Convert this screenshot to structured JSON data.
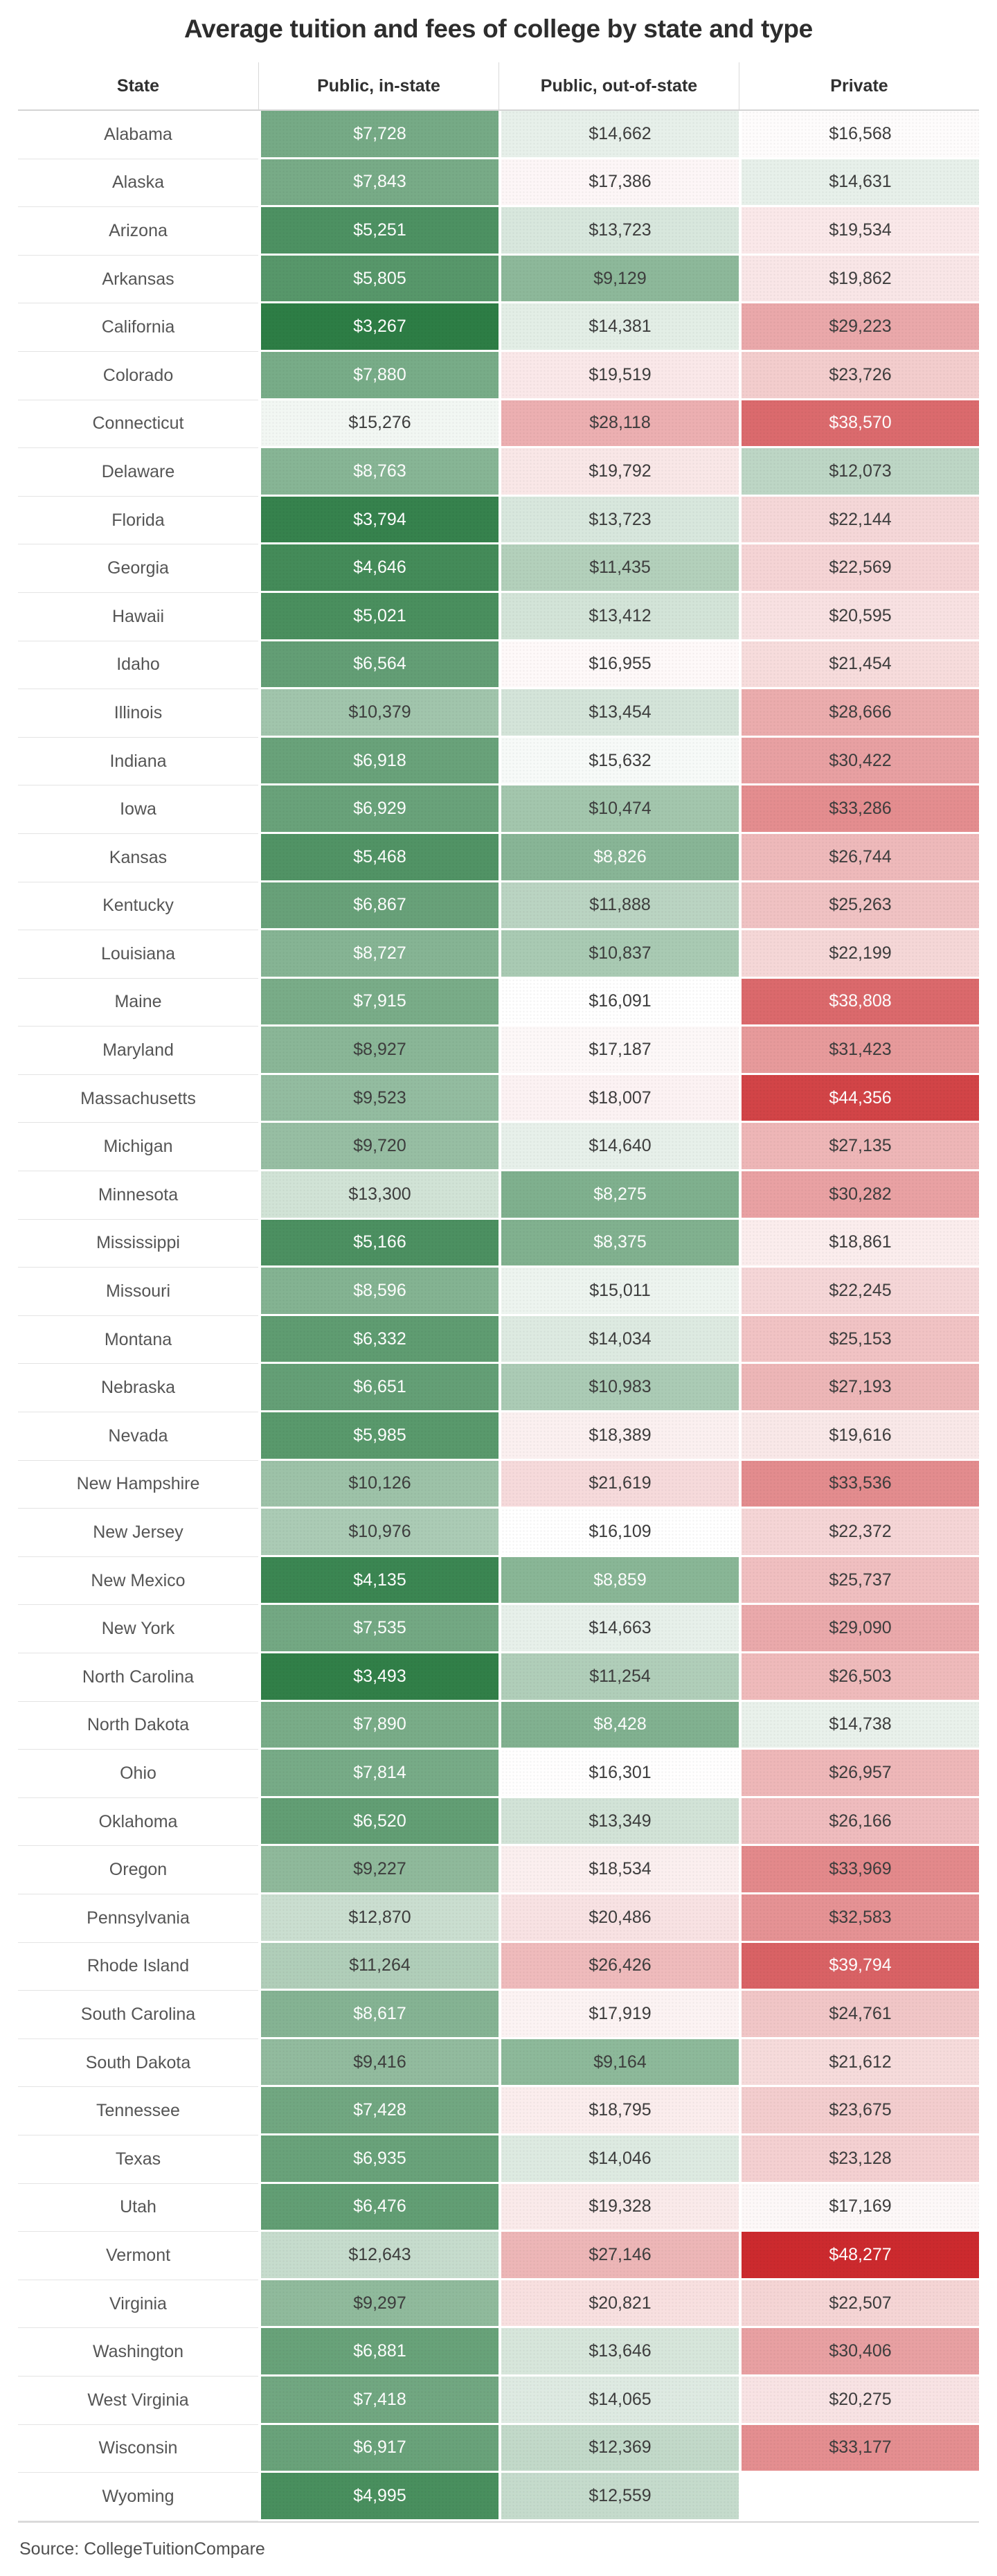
{
  "page": {
    "title": "Average tuition and fees of college by state and type",
    "source": "Source: CollegeTuitionCompare"
  },
  "chart_data": {
    "type": "heatmap",
    "title": "Average tuition and fees of college by state and type",
    "columns": [
      "State",
      "Public, in-state",
      "Public, out-of-state",
      "Private"
    ],
    "value_format": "$#,###",
    "color_scale": {
      "description": "diverging green-white-red; green = low tuition, red = high tuition",
      "min_value": 3267,
      "mid_value": 16100,
      "max_value": 48277,
      "low_color": "#2d7d45",
      "mid_color": "#ffffff",
      "high_color": "#cc2a2e",
      "white_text_green_t_below": 0.44,
      "white_text_red_t_above": 0.63,
      "dark_text_color": "#3d3d3d"
    },
    "rows": [
      {
        "state": "Alabama",
        "public_in_state": 7728,
        "public_out_of_state": 14662,
        "private": 16568
      },
      {
        "state": "Alaska",
        "public_in_state": 7843,
        "public_out_of_state": 17386,
        "private": 14631
      },
      {
        "state": "Arizona",
        "public_in_state": 5251,
        "public_out_of_state": 13723,
        "private": 19534
      },
      {
        "state": "Arkansas",
        "public_in_state": 5805,
        "public_out_of_state": 9129,
        "private": 19862
      },
      {
        "state": "California",
        "public_in_state": 3267,
        "public_out_of_state": 14381,
        "private": 29223
      },
      {
        "state": "Colorado",
        "public_in_state": 7880,
        "public_out_of_state": 19519,
        "private": 23726
      },
      {
        "state": "Connecticut",
        "public_in_state": 15276,
        "public_out_of_state": 28118,
        "private": 38570
      },
      {
        "state": "Delaware",
        "public_in_state": 8763,
        "public_out_of_state": 19792,
        "private": 12073
      },
      {
        "state": "Florida",
        "public_in_state": 3794,
        "public_out_of_state": 13723,
        "private": 22144
      },
      {
        "state": "Georgia",
        "public_in_state": 4646,
        "public_out_of_state": 11435,
        "private": 22569
      },
      {
        "state": "Hawaii",
        "public_in_state": 5021,
        "public_out_of_state": 13412,
        "private": 20595
      },
      {
        "state": "Idaho",
        "public_in_state": 6564,
        "public_out_of_state": 16955,
        "private": 21454
      },
      {
        "state": "Illinois",
        "public_in_state": 10379,
        "public_out_of_state": 13454,
        "private": 28666
      },
      {
        "state": "Indiana",
        "public_in_state": 6918,
        "public_out_of_state": 15632,
        "private": 30422
      },
      {
        "state": "Iowa",
        "public_in_state": 6929,
        "public_out_of_state": 10474,
        "private": 33286
      },
      {
        "state": "Kansas",
        "public_in_state": 5468,
        "public_out_of_state": 8826,
        "private": 26744
      },
      {
        "state": "Kentucky",
        "public_in_state": 6867,
        "public_out_of_state": 11888,
        "private": 25263
      },
      {
        "state": "Louisiana",
        "public_in_state": 8727,
        "public_out_of_state": 10837,
        "private": 22199
      },
      {
        "state": "Maine",
        "public_in_state": 7915,
        "public_out_of_state": 16091,
        "private": 38808
      },
      {
        "state": "Maryland",
        "public_in_state": 8927,
        "public_out_of_state": 17187,
        "private": 31423
      },
      {
        "state": "Massachusetts",
        "public_in_state": 9523,
        "public_out_of_state": 18007,
        "private": 44356
      },
      {
        "state": "Michigan",
        "public_in_state": 9720,
        "public_out_of_state": 14640,
        "private": 27135
      },
      {
        "state": "Minnesota",
        "public_in_state": 13300,
        "public_out_of_state": 8275,
        "private": 30282
      },
      {
        "state": "Mississippi",
        "public_in_state": 5166,
        "public_out_of_state": 8375,
        "private": 18861
      },
      {
        "state": "Missouri",
        "public_in_state": 8596,
        "public_out_of_state": 15011,
        "private": 22245
      },
      {
        "state": "Montana",
        "public_in_state": 6332,
        "public_out_of_state": 14034,
        "private": 25153
      },
      {
        "state": "Nebraska",
        "public_in_state": 6651,
        "public_out_of_state": 10983,
        "private": 27193
      },
      {
        "state": "Nevada",
        "public_in_state": 5985,
        "public_out_of_state": 18389,
        "private": 19616
      },
      {
        "state": "New Hampshire",
        "public_in_state": 10126,
        "public_out_of_state": 21619,
        "private": 33536
      },
      {
        "state": "New Jersey",
        "public_in_state": 10976,
        "public_out_of_state": 16109,
        "private": 22372
      },
      {
        "state": "New Mexico",
        "public_in_state": 4135,
        "public_out_of_state": 8859,
        "private": 25737
      },
      {
        "state": "New York",
        "public_in_state": 7535,
        "public_out_of_state": 14663,
        "private": 29090
      },
      {
        "state": "North Carolina",
        "public_in_state": 3493,
        "public_out_of_state": 11254,
        "private": 26503
      },
      {
        "state": "North Dakota",
        "public_in_state": 7890,
        "public_out_of_state": 8428,
        "private": 14738
      },
      {
        "state": "Ohio",
        "public_in_state": 7814,
        "public_out_of_state": 16301,
        "private": 26957
      },
      {
        "state": "Oklahoma",
        "public_in_state": 6520,
        "public_out_of_state": 13349,
        "private": 26166
      },
      {
        "state": "Oregon",
        "public_in_state": 9227,
        "public_out_of_state": 18534,
        "private": 33969
      },
      {
        "state": "Pennsylvania",
        "public_in_state": 12870,
        "public_out_of_state": 20486,
        "private": 32583
      },
      {
        "state": "Rhode Island",
        "public_in_state": 11264,
        "public_out_of_state": 26426,
        "private": 39794
      },
      {
        "state": "South Carolina",
        "public_in_state": 8617,
        "public_out_of_state": 17919,
        "private": 24761
      },
      {
        "state": "South Dakota",
        "public_in_state": 9416,
        "public_out_of_state": 9164,
        "private": 21612
      },
      {
        "state": "Tennessee",
        "public_in_state": 7428,
        "public_out_of_state": 18795,
        "private": 23675
      },
      {
        "state": "Texas",
        "public_in_state": 6935,
        "public_out_of_state": 14046,
        "private": 23128
      },
      {
        "state": "Utah",
        "public_in_state": 6476,
        "public_out_of_state": 19328,
        "private": 17169
      },
      {
        "state": "Vermont",
        "public_in_state": 12643,
        "public_out_of_state": 27146,
        "private": 48277
      },
      {
        "state": "Virginia",
        "public_in_state": 9297,
        "public_out_of_state": 20821,
        "private": 22507
      },
      {
        "state": "Washington",
        "public_in_state": 6881,
        "public_out_of_state": 13646,
        "private": 30406
      },
      {
        "state": "West Virginia",
        "public_in_state": 7418,
        "public_out_of_state": 14065,
        "private": 20275
      },
      {
        "state": "Wisconsin",
        "public_in_state": 6917,
        "public_out_of_state": 12369,
        "private": 33177
      },
      {
        "state": "Wyoming",
        "public_in_state": 4995,
        "public_out_of_state": 12559,
        "private": null
      }
    ]
  }
}
